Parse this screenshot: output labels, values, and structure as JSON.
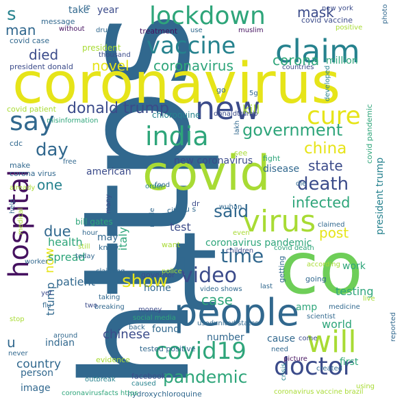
{
  "palette": {
    "purple": "#45115f",
    "darkblue": "#3b4b8a",
    "blue": "#31688e",
    "teal": "#26828e",
    "green": "#2ea57a",
    "lightgreen": "#6ece58",
    "lime": "#a8db34",
    "yellow": "#e6e419"
  },
  "words": [
    {
      "text": "https",
      "color": "#31688e"
    },
    {
      "text": "t",
      "color": "#31688e"
    },
    {
      "text": "co",
      "color": "#6ece58"
    },
    {
      "text": "coronavirus",
      "color": "#e6e419"
    },
    {
      "text": "covid",
      "color": "#a8db34"
    },
    {
      "text": "people",
      "color": "#31688e"
    },
    {
      "text": "hospital",
      "color": "#45115f"
    },
    {
      "text": "lockdown",
      "color": "#2ea57a"
    },
    {
      "text": "claim",
      "color": "#26828e"
    },
    {
      "text": "vaccine",
      "color": "#26828e"
    },
    {
      "text": "new",
      "color": "#3b4b8a"
    },
    {
      "text": "say",
      "color": "#31688e"
    },
    {
      "text": "cure",
      "color": "#e6e419"
    },
    {
      "text": "india",
      "color": "#2ea57a"
    },
    {
      "text": "virus",
      "color": "#a8db34"
    },
    {
      "text": "will",
      "color": "#a8db34"
    },
    {
      "text": "covid19",
      "color": "#2ea57a"
    },
    {
      "text": "doctor",
      "color": "#3b4b8a"
    },
    {
      "text": "pandemic",
      "color": "#2ea57a"
    },
    {
      "text": "death",
      "color": "#3b4b8a"
    },
    {
      "text": "government",
      "color": "#2ea57a"
    },
    {
      "text": "video",
      "color": "#3b4b8a"
    },
    {
      "text": "time",
      "color": "#31688e"
    },
    {
      "text": "show",
      "color": "#e6e419"
    },
    {
      "text": "said",
      "color": "#31688e"
    },
    {
      "text": "day",
      "color": "#31688e"
    },
    {
      "text": "china",
      "color": "#e6e419"
    },
    {
      "text": "state",
      "color": "#3b4b8a"
    },
    {
      "text": "infected",
      "color": "#2ea57a"
    },
    {
      "text": "donald trump",
      "color": "#3b4b8a"
    },
    {
      "text": "coronavirus",
      "color": "#2ea57a"
    },
    {
      "text": "corona",
      "color": "#2ea57a"
    },
    {
      "text": "novel",
      "color": "#e6e419"
    },
    {
      "text": "died",
      "color": "#3b4b8a"
    },
    {
      "text": "man",
      "color": "#31688e"
    },
    {
      "text": "s",
      "color": "#26828e"
    },
    {
      "text": "mask",
      "color": "#3b4b8a"
    },
    {
      "text": "million",
      "color": "#2ea57a"
    },
    {
      "text": "one",
      "color": "#26828e"
    },
    {
      "text": "due",
      "color": "#31688e"
    },
    {
      "text": "now",
      "color": "#e6e419"
    },
    {
      "text": "test",
      "color": "#3b4b8a"
    },
    {
      "text": "post",
      "color": "#e6e419"
    },
    {
      "text": "kill",
      "color": "#a8db34"
    },
    {
      "text": "world",
      "color": "#2ea57a"
    },
    {
      "text": "case",
      "color": "#2ea57a"
    },
    {
      "text": "chinese",
      "color": "#3b4b8a"
    },
    {
      "text": "country",
      "color": "#31688e"
    },
    {
      "text": "trump",
      "color": "#31688e"
    },
    {
      "text": "italy",
      "color": "#2ea57a"
    },
    {
      "text": "health",
      "color": "#2ea57a"
    },
    {
      "text": "spread",
      "color": "#2ea57a"
    },
    {
      "text": "patient",
      "color": "#31688e"
    },
    {
      "text": "american",
      "color": "#3b4b8a"
    },
    {
      "text": "new coronavirus",
      "color": "#3b4b8a"
    },
    {
      "text": "disease",
      "color": "#31688e"
    },
    {
      "text": "coronavirus pandemic",
      "color": "#2ea57a"
    },
    {
      "text": "president trump",
      "color": "#26828e"
    },
    {
      "text": "testing",
      "color": "#2ea57a"
    },
    {
      "text": "work",
      "color": "#2ea57a"
    },
    {
      "text": "first",
      "color": "#2ea57a"
    },
    {
      "text": "u",
      "color": "#31688e"
    },
    {
      "text": "person",
      "color": "#31688e"
    },
    {
      "text": "image",
      "color": "#31688e"
    },
    {
      "text": "indian",
      "color": "#31688e"
    },
    {
      "text": "number",
      "color": "#31688e"
    },
    {
      "text": "found",
      "color": "#31688e"
    },
    {
      "text": "home",
      "color": "#31688e"
    },
    {
      "text": "may",
      "color": "#31688e"
    },
    {
      "text": "cause",
      "color": "#31688e"
    },
    {
      "text": "amp",
      "color": "#2ea57a"
    },
    {
      "text": "take",
      "color": "#31688e"
    },
    {
      "text": "year",
      "color": "#3b4b8a"
    },
    {
      "text": "message",
      "color": "#31688e"
    },
    {
      "text": "without",
      "color": "#45115f"
    },
    {
      "text": "drug",
      "color": "#31688e"
    },
    {
      "text": "treatment",
      "color": "#45115f"
    },
    {
      "text": "use",
      "color": "#31688e"
    },
    {
      "text": "muslim",
      "color": "#45115f"
    },
    {
      "text": "covid vaccine",
      "color": "#3b4b8a"
    },
    {
      "text": "positive",
      "color": "#a8db34"
    },
    {
      "text": "new york",
      "color": "#3b4b8a"
    },
    {
      "text": "re",
      "color": "#31688e"
    },
    {
      "text": "photo",
      "color": "#31688e"
    },
    {
      "text": "covid case",
      "color": "#31688e"
    },
    {
      "text": "president",
      "color": "#a8db34"
    },
    {
      "text": "thousand",
      "color": "#3b4b8a"
    },
    {
      "text": "president donald",
      "color": "#3b4b8a"
    },
    {
      "text": "countries",
      "color": "#3b4b8a"
    },
    {
      "text": "developed",
      "color": "#26828e"
    },
    {
      "text": "covid patient",
      "color": "#a8db34"
    },
    {
      "text": "misinformation",
      "color": "#2ea57a"
    },
    {
      "text": "chloroquine",
      "color": "#26828e"
    },
    {
      "text": "donaldtrump",
      "color": "#3b4b8a"
    },
    {
      "text": "covid pandemic",
      "color": "#2ea57a"
    },
    {
      "text": "cdc",
      "color": "#31688e"
    },
    {
      "text": "make",
      "color": "#31688e"
    },
    {
      "text": "corona virus",
      "color": "#31688e"
    },
    {
      "text": "free",
      "color": "#31688e"
    },
    {
      "text": "already",
      "color": "#a8db34"
    },
    {
      "text": "help",
      "color": "#31688e"
    },
    {
      "text": "fight",
      "color": "#2ea57a"
    },
    {
      "text": "see",
      "color": "#a8db34"
    },
    {
      "text": "lakh",
      "color": "#31688e"
    },
    {
      "text": "go",
      "color": "#31688e"
    },
    {
      "text": "5g",
      "color": "#31688e"
    },
    {
      "text": "food",
      "color": "#31688e"
    },
    {
      "text": "die",
      "color": "#31688e"
    },
    {
      "text": "many",
      "color": "#3b4b8a"
    },
    {
      "text": "order",
      "color": "#26828e"
    },
    {
      "text": "made",
      "color": "#31688e"
    },
    {
      "text": "city",
      "color": "#31688e"
    },
    {
      "text": "dr",
      "color": "#3b4b8a"
    },
    {
      "text": "wuhan",
      "color": "#31688e"
    },
    {
      "text": "u s",
      "color": "#31688e"
    },
    {
      "text": "even",
      "color": "#a8db34"
    },
    {
      "text": "claimed",
      "color": "#31688e"
    },
    {
      "text": "medical",
      "color": "#a8db34"
    },
    {
      "text": "hour",
      "color": "#31688e"
    },
    {
      "text": "bill gates",
      "color": "#2ea57a"
    },
    {
      "text": "want",
      "color": "#a8db34"
    },
    {
      "text": "still",
      "color": "#a8db34"
    },
    {
      "text": "know",
      "color": "#31688e"
    },
    {
      "text": "children",
      "color": "#3b4b8a"
    },
    {
      "text": "covid death",
      "color": "#2ea57a"
    },
    {
      "text": "today",
      "color": "#31688e"
    },
    {
      "text": "worker",
      "color": "#31688e"
    },
    {
      "text": "claiming",
      "color": "#31688e"
    },
    {
      "text": "police",
      "color": "#a8db34"
    },
    {
      "text": "according",
      "color": "#a8db34"
    },
    {
      "text": "going",
      "color": "#31688e"
    },
    {
      "text": "getting",
      "color": "#31688e"
    },
    {
      "text": "governor",
      "color": "#3b4b8a"
    },
    {
      "text": "yet",
      "color": "#3b4b8a"
    },
    {
      "text": "flu",
      "color": "#31688e"
    },
    {
      "text": "video shows",
      "color": "#31688e"
    },
    {
      "text": "taking",
      "color": "#31688e"
    },
    {
      "text": "breaking",
      "color": "#31688e"
    },
    {
      "text": "two",
      "color": "#3b4b8a"
    },
    {
      "text": "money",
      "color": "#3b4b8a"
    },
    {
      "text": "stop",
      "color": "#a8db34"
    },
    {
      "text": "live",
      "color": "#a8db34"
    },
    {
      "text": "last",
      "color": "#31688e"
    },
    {
      "text": "social media",
      "color": "#2ea57a"
    },
    {
      "text": "usedunited states",
      "color": "#31688e"
    },
    {
      "text": "medicine",
      "color": "#31688e"
    },
    {
      "text": "scientist",
      "color": "#31688e"
    },
    {
      "text": "back",
      "color": "#31688e"
    },
    {
      "text": "around",
      "color": "#31688e"
    },
    {
      "text": "reported",
      "color": "#31688e"
    },
    {
      "text": "come",
      "color": "#3b4b8a"
    },
    {
      "text": "tested positive",
      "color": "#31688e"
    },
    {
      "text": "never",
      "color": "#31688e"
    },
    {
      "text": "evidence",
      "color": "#a8db34"
    },
    {
      "text": "report",
      "color": "#31688e"
    },
    {
      "text": "need",
      "color": "#31688e"
    },
    {
      "text": "picture",
      "color": "#45115f"
    },
    {
      "text": "crisis",
      "color": "#26828e"
    },
    {
      "text": "outbreak",
      "color": "#26828e"
    },
    {
      "text": "facebook",
      "color": "#3b4b8a"
    },
    {
      "text": "caused",
      "color": "#26828e"
    },
    {
      "text": "created",
      "color": "#31688e"
    },
    {
      "text": "using",
      "color": "#a8db34"
    },
    {
      "text": "hydroxychloroquine",
      "color": "#31688e"
    },
    {
      "text": "coronavirusfacts https",
      "color": "#2ea57a"
    },
    {
      "text": "coronavirus vaccine brazil",
      "color": "#a8db34"
    }
  ]
}
